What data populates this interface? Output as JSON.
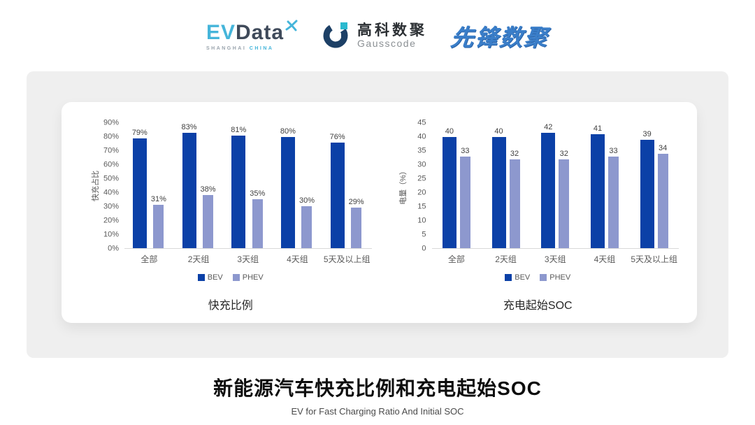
{
  "header": {
    "logos": {
      "evdata": {
        "ev": "EV",
        "data": "Data",
        "sub_left": "SHANGHAI",
        "sub_right": "CHINA"
      },
      "gausscode": {
        "cn": "高科数聚",
        "en": "Gausscode"
      },
      "pioneer": {
        "text": "先锋数聚"
      }
    }
  },
  "colors": {
    "bev": "#0b40a7",
    "phev": "#8d98ce",
    "evdata_blue": "#45b5da",
    "evdata_dark": "#3f4a5a",
    "gauss_navy": "#1d4066",
    "gauss_cyan": "#2ab9cf",
    "pioneer_blue": "#3a7ec9",
    "panel_gray": "#efefef"
  },
  "chart_data": [
    {
      "type": "bar",
      "title": "快充比例",
      "ylabel": "快充占比",
      "categories": [
        "全部",
        "2天组",
        "3天组",
        "4天组",
        "5天及以上组"
      ],
      "series": [
        {
          "name": "BEV",
          "color": "#0b40a7",
          "values": [
            79,
            83,
            81,
            80,
            76
          ],
          "labels": [
            "79%",
            "83%",
            "81%",
            "80%",
            "76%"
          ]
        },
        {
          "name": "PHEV",
          "color": "#8d98ce",
          "values": [
            31,
            38,
            35,
            30,
            29
          ],
          "labels": [
            "31%",
            "38%",
            "35%",
            "30%",
            "29%"
          ]
        }
      ],
      "ylim": [
        0,
        90
      ],
      "ytick_step": 10,
      "ytick_format": "percent",
      "grid": false,
      "legend_position": "bottom"
    },
    {
      "type": "bar",
      "title": "充电起始SOC",
      "ylabel": "电量（%）",
      "categories": [
        "全部",
        "2天组",
        "3天组",
        "4天组",
        "5天及以上组"
      ],
      "series": [
        {
          "name": "BEV",
          "color": "#0b40a7",
          "values": [
            40,
            40,
            42,
            41,
            39
          ],
          "labels": [
            "40",
            "40",
            "42",
            "41",
            "39"
          ]
        },
        {
          "name": "PHEV",
          "color": "#8d98ce",
          "values": [
            33,
            32,
            32,
            33,
            34
          ],
          "labels": [
            "33",
            "32",
            "32",
            "33",
            "34"
          ]
        }
      ],
      "ylim": [
        0,
        45
      ],
      "ytick_step": 5,
      "ytick_format": "number",
      "grid": false,
      "legend_position": "bottom"
    }
  ],
  "footer": {
    "title": "新能源汽车快充比例和充电起始SOC",
    "subtitle": "EV for Fast Charging Ratio And Initial SOC"
  }
}
